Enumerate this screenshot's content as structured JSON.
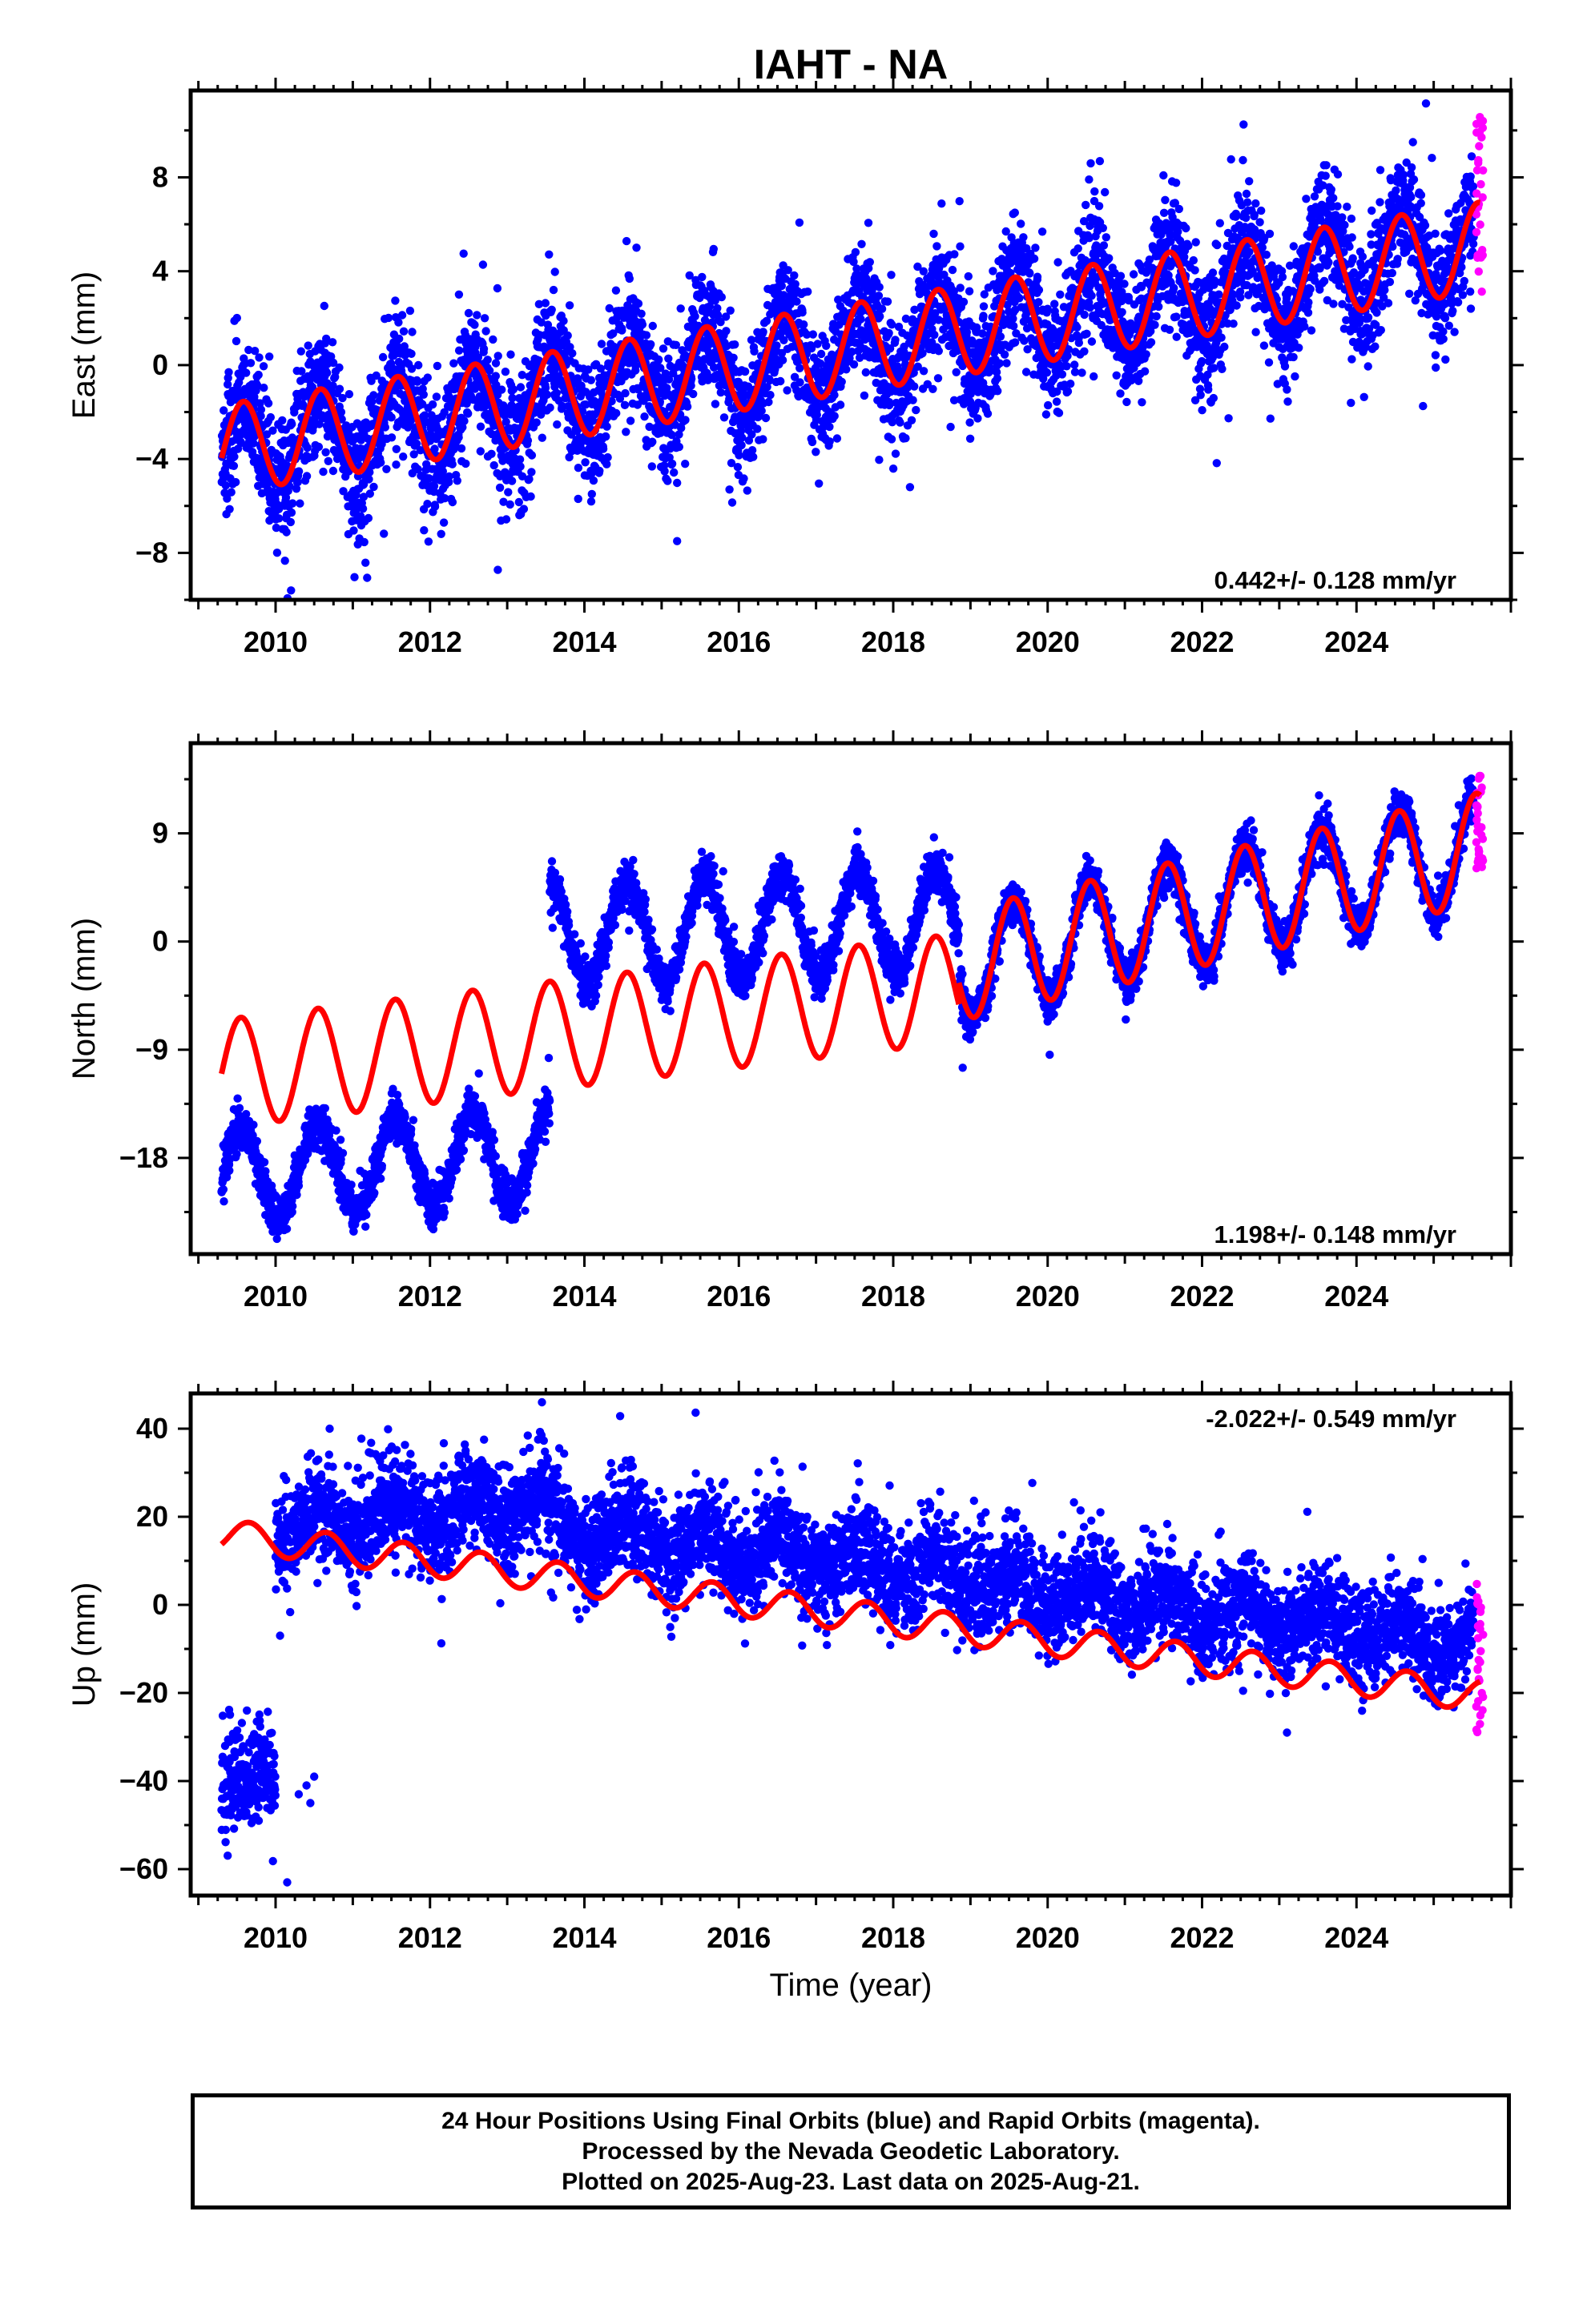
{
  "title": "IAHT - NA",
  "colors": {
    "final": "#0000ff",
    "rapid": "#ff00ff",
    "model": "#ff0000",
    "frame": "#000000"
  },
  "chart_data": [
    {
      "type": "scatter",
      "component": "east",
      "ylabel": "East (mm)",
      "xlabel": "",
      "xlim": [
        2008.9,
        2026.0
      ],
      "ylim": [
        -10,
        11.7
      ],
      "xticks": [
        2010,
        2012,
        2014,
        2016,
        2018,
        2020,
        2022,
        2024
      ],
      "yticks": [
        -8,
        -4,
        0,
        4,
        8
      ],
      "rate_text": "0.442+/- 0.128 mm/yr",
      "rate_position": "bottom-right",
      "model": {
        "t0": 2009.3,
        "t1": 2025.6,
        "offset": -3.6,
        "slope": 0.53,
        "amplitude": 1.9,
        "peak_phase": 0.58
      },
      "final_series": {
        "name": "Final Orbits",
        "t_start": 2009.3,
        "t_end": 2025.52,
        "daily": true,
        "scatter_sd": 1.3
      },
      "rapid_series": {
        "name": "Rapid Orbits",
        "t_start": 2025.55,
        "t_end": 2025.64,
        "y_range": [
          3,
          11.3
        ]
      },
      "outliers": [
        {
          "x": 2010.2,
          "y": -9.6
        },
        {
          "x": 2015.2,
          "y": -7.5
        },
        {
          "x": 2013.6,
          "y": 3.2
        }
      ]
    },
    {
      "type": "scatter",
      "component": "north",
      "ylabel": "North (mm)",
      "xlabel": "",
      "xlim": [
        2008.9,
        2026.0
      ],
      "ylim": [
        -26,
        16.5
      ],
      "xticks": [
        2010,
        2012,
        2014,
        2016,
        2018,
        2020,
        2022,
        2024
      ],
      "yticks": [
        -18,
        -9,
        0,
        9
      ],
      "rate_text": "1.198+/- 0.148 mm/yr",
      "rate_position": "bottom-right",
      "model_segments": [
        {
          "t0": 2009.3,
          "t1": 2018.85,
          "offset": -11.0,
          "slope": 0.75,
          "amplitude": 4.5,
          "peak_phase": 0.55
        },
        {
          "t0": 2018.85,
          "t1": 2025.6,
          "offset": -2.0,
          "slope": 1.45,
          "amplitude": 4.6,
          "peak_phase": 0.55
        }
      ],
      "data_segments": [
        {
          "t0": 2009.3,
          "t1": 2013.55,
          "offset": -19.5,
          "slope": 0.45,
          "amplitude": 3.8
        },
        {
          "t0": 2013.55,
          "t1": 2018.85,
          "offset": 0.5,
          "slope": 0.25,
          "amplitude": 4.3
        },
        {
          "t0": 2018.85,
          "t1": 2025.52,
          "offset": -2.0,
          "slope": 1.45,
          "amplitude": 4.6
        }
      ],
      "final_series": {
        "name": "Final Orbits",
        "t_start": 2009.3,
        "t_end": 2025.52,
        "daily": true,
        "scatter_sd": 0.9
      },
      "rapid_series": {
        "name": "Rapid Orbits",
        "t_start": 2025.55,
        "t_end": 2025.64,
        "y_range": [
          5,
          14
        ]
      },
      "outliers": [
        {
          "x": 2018.9,
          "y": -10.5
        }
      ]
    },
    {
      "type": "scatter",
      "component": "up",
      "ylabel": "Up (mm)",
      "xlabel": "Time (year)",
      "xlim": [
        2008.9,
        2026.0
      ],
      "ylim": [
        -66,
        48
      ],
      "xticks": [
        2010,
        2012,
        2014,
        2016,
        2018,
        2020,
        2022,
        2024
      ],
      "yticks": [
        -60,
        -40,
        -20,
        0,
        20,
        40
      ],
      "rate_text": "-2.022+/- 0.549 mm/yr",
      "rate_position": "top-right",
      "model": {
        "t0": 2009.3,
        "t1": 2025.6,
        "offset": 16.0,
        "slope": -2.25,
        "amplitude": 3.5,
        "peak_phase": 0.66
      },
      "early_cluster": {
        "t_start": 2009.3,
        "t_end": 2010.0,
        "center": -40,
        "sd": 6
      },
      "early_fragments": [
        {
          "x": 2010.3,
          "y": -43
        },
        {
          "x": 2010.4,
          "y": -41
        },
        {
          "x": 2010.45,
          "y": -45
        },
        {
          "x": 2010.5,
          "y": -39
        }
      ],
      "data_segments": [
        {
          "t0": 2010.0,
          "t1": 2013.5,
          "offset": 17.0,
          "slope": 1.8,
          "amplitude": 4.0
        },
        {
          "t0": 2013.5,
          "t1": 2025.52,
          "offset": 18.0,
          "slope": -2.25,
          "amplitude": 4.0
        }
      ],
      "final_series": {
        "name": "Final Orbits",
        "t_start": 2010.0,
        "t_end": 2025.52,
        "daily": true,
        "scatter_sd": 5.5
      },
      "rapid_series": {
        "name": "Rapid Orbits",
        "t_start": 2025.55,
        "t_end": 2025.64,
        "y_range": [
          -31,
          5
        ]
      },
      "outliers": [
        {
          "x": 2010.15,
          "y": -63
        },
        {
          "x": 2013.45,
          "y": 46
        },
        {
          "x": 2010.7,
          "y": 40
        },
        {
          "x": 2023.1,
          "y": -29
        }
      ]
    }
  ],
  "footer": {
    "line1": "24 Hour Positions Using Final Orbits (blue) and Rapid Orbits (magenta).",
    "line2": "Processed by the Nevada Geodetic Laboratory.",
    "line3": "Plotted on 2025-Aug-23. Last data on 2025-Aug-21."
  }
}
